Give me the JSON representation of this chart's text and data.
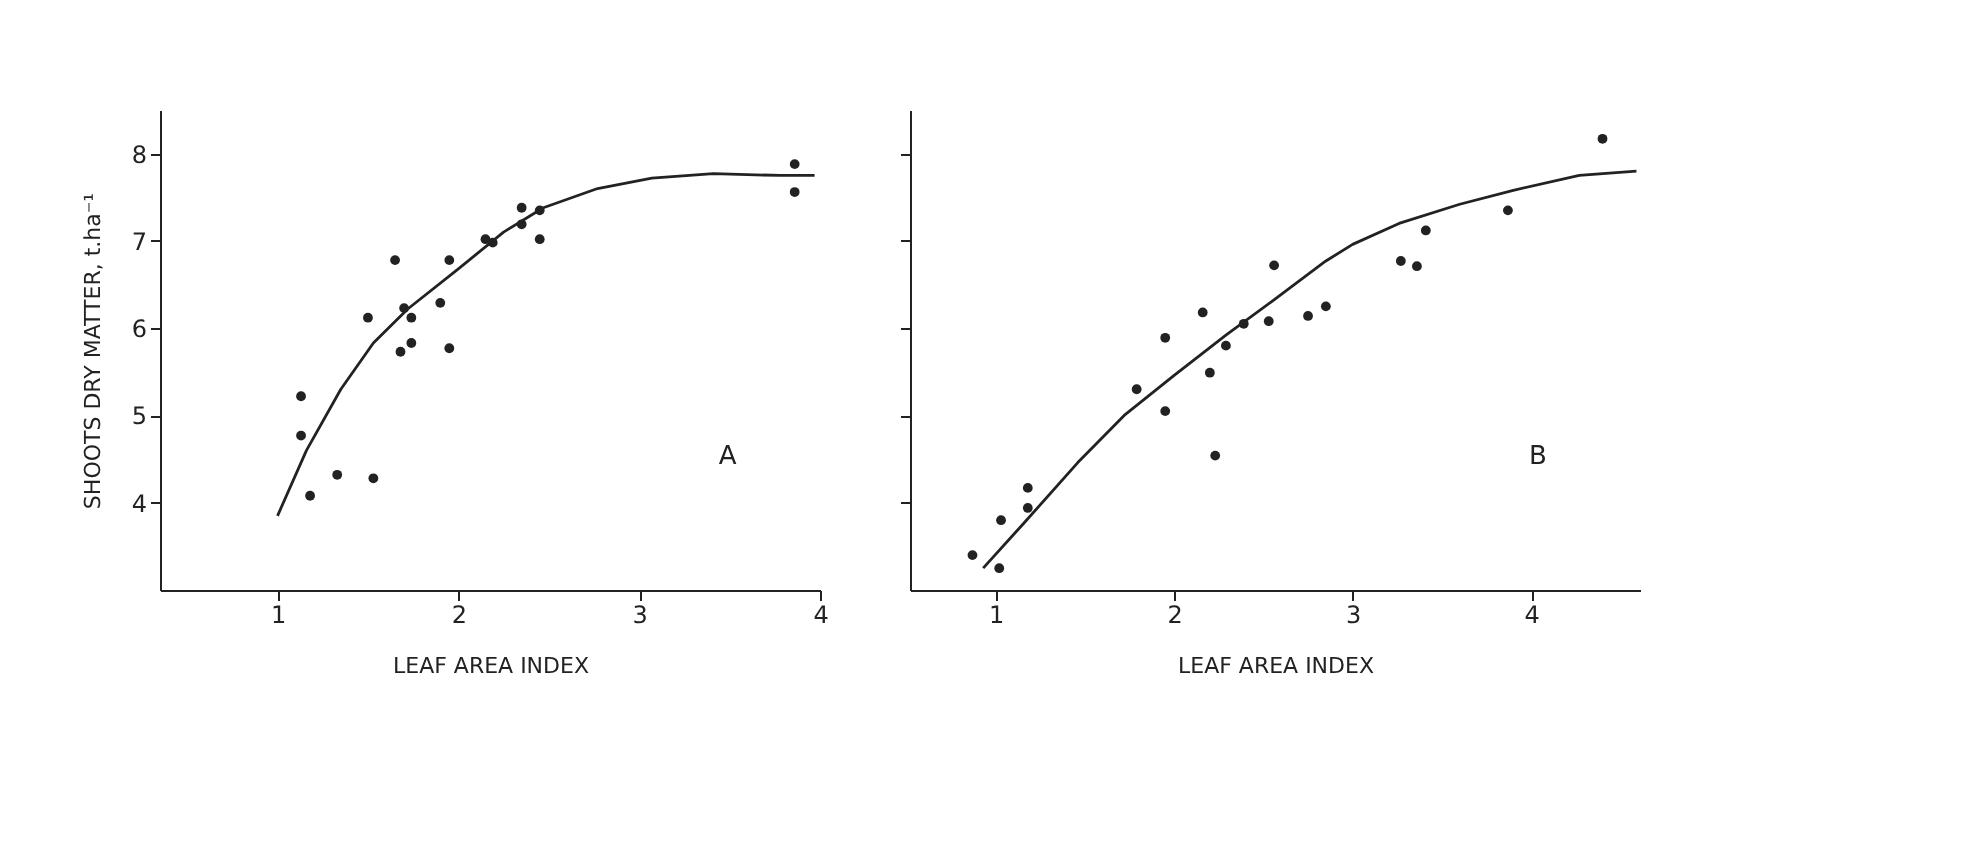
{
  "chart_data": [
    {
      "type": "scatter",
      "xlabel": "LEAF AREA INDEX",
      "ylabel": "SHOOTS DRY MATTER, t.ha⁻¹",
      "xlim": [
        0.35,
        4.0
      ],
      "ylim": [
        3.0,
        8.5
      ],
      "xticks": [
        1,
        2,
        3,
        4
      ],
      "yticks": [
        4,
        5,
        6,
        7,
        8
      ],
      "grid": false,
      "marker": "circle",
      "annotations": [
        "A"
      ],
      "series": [
        {
          "color": "#222222",
          "x": [
            1.13,
            1.13,
            1.18,
            1.33,
            1.5,
            1.53,
            1.65,
            1.7,
            1.68,
            1.74,
            1.74,
            1.9,
            1.95,
            1.95,
            2.15,
            2.19,
            2.35,
            2.35,
            2.45,
            2.45,
            3.86,
            3.86
          ],
          "values": [
            5.22,
            4.77,
            4.08,
            4.32,
            6.12,
            4.28,
            6.78,
            6.23,
            5.73,
            5.83,
            6.12,
            6.29,
            6.78,
            5.77,
            7.02,
            6.98,
            7.38,
            7.19,
            7.35,
            7.02,
            7.88,
            7.56
          ]
        },
        {
          "type": "line",
          "marker": "none",
          "line_style": "solid",
          "color": "#222222",
          "x": [
            1.0,
            1.16,
            1.35,
            1.53,
            1.72,
            2.0,
            2.25,
            2.47,
            2.77,
            3.07,
            3.41,
            3.78,
            3.97
          ],
          "values": [
            3.85,
            4.6,
            5.3,
            5.83,
            6.22,
            6.68,
            7.1,
            7.38,
            7.6,
            7.72,
            7.77,
            7.75,
            7.75
          ]
        }
      ]
    },
    {
      "type": "scatter",
      "xlabel": "LEAF AREA INDEX",
      "xlim": [
        0.52,
        4.61
      ],
      "ylim": [
        3.0,
        8.5
      ],
      "xticks": [
        1,
        2,
        3,
        4
      ],
      "yticks": [
        4,
        5,
        6,
        7,
        8
      ],
      "tick_labels": "x",
      "grid": false,
      "marker": "circle",
      "annotations": [
        "B"
      ],
      "series": [
        {
          "color": "#222222",
          "x": [
            0.87,
            1.02,
            1.03,
            1.18,
            1.18,
            1.79,
            1.95,
            1.95,
            2.16,
            2.2,
            2.23,
            2.29,
            2.39,
            2.53,
            2.56,
            2.75,
            2.85,
            3.27,
            3.36,
            3.41,
            3.87,
            4.4
          ],
          "values": [
            3.4,
            3.25,
            3.8,
            4.17,
            3.94,
            5.3,
            5.89,
            5.05,
            6.18,
            5.49,
            4.54,
            5.8,
            6.05,
            6.08,
            6.72,
            6.14,
            6.25,
            6.77,
            6.71,
            7.12,
            7.35,
            8.17
          ]
        },
        {
          "type": "line",
          "marker": "none",
          "line_style": "solid",
          "color": "#222222",
          "x": [
            0.93,
            1.16,
            1.46,
            1.72,
            2.0,
            2.29,
            2.55,
            2.85,
            3.0,
            3.26,
            3.6,
            3.9,
            4.27,
            4.59
          ],
          "values": [
            3.25,
            3.77,
            4.46,
            5.0,
            5.46,
            5.92,
            6.31,
            6.77,
            6.96,
            7.2,
            7.42,
            7.58,
            7.75,
            7.8
          ]
        }
      ]
    }
  ]
}
